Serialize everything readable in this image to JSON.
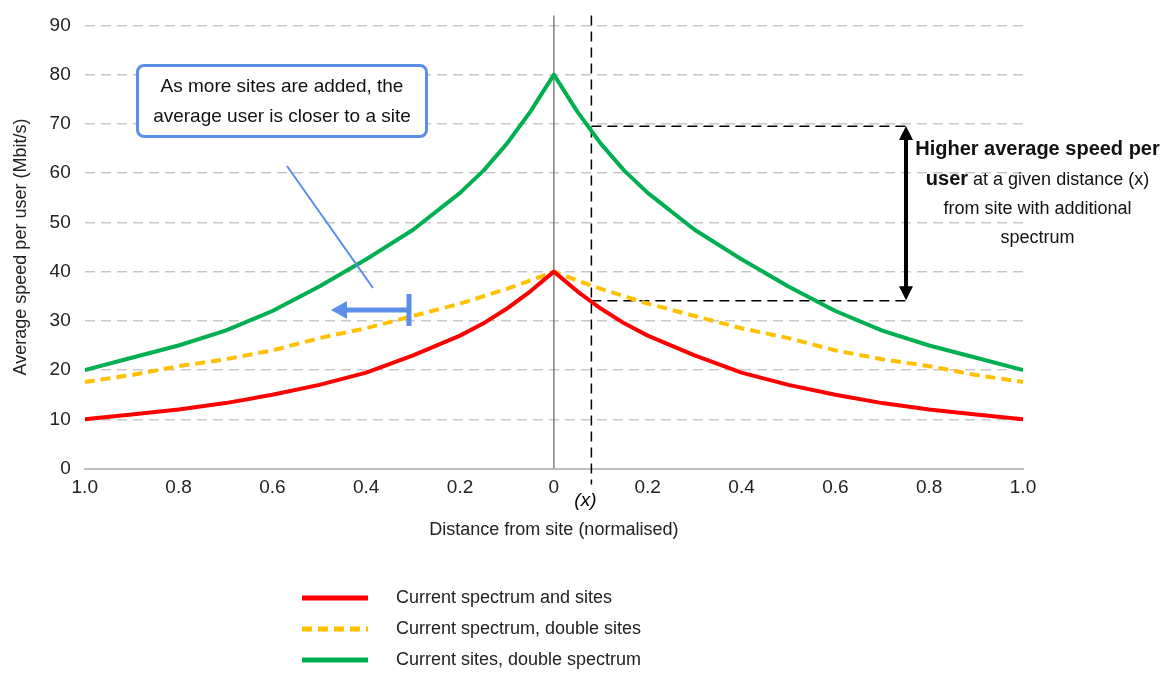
{
  "chart_data": {
    "type": "line",
    "xlabel": "Distance from site (normalised)",
    "ylabel": "Average speed per user (Mbit/s)",
    "x": [
      -1,
      -0.9,
      -0.8,
      -0.7,
      -0.6,
      -0.5,
      -0.4,
      -0.3,
      -0.2,
      -0.15,
      -0.1,
      -0.05,
      0,
      0.05,
      0.1,
      0.15,
      0.2,
      0.3,
      0.4,
      0.5,
      0.6,
      0.7,
      0.8,
      0.9,
      1
    ],
    "series": [
      {
        "name": "Current spectrum and sites",
        "color": "#ff0000",
        "line_style": "solid",
        "values": [
          10,
          11,
          12,
          13.3,
          15,
          17,
          19.5,
          23,
          27,
          29.5,
          32.5,
          36,
          40,
          36,
          32.5,
          29.5,
          27,
          23,
          19.5,
          17,
          15,
          13.3,
          12,
          11,
          10
        ]
      },
      {
        "name": "Current spectrum, double sites",
        "color": "#ffc000",
        "line_style": "dashed",
        "values": [
          17.6,
          19,
          20.8,
          22.2,
          24,
          26.5,
          28.5,
          31,
          33.5,
          35,
          36.5,
          38.2,
          40,
          38.2,
          36.5,
          35,
          33.5,
          31,
          28.5,
          26.5,
          24,
          22.2,
          20.8,
          19,
          17.6
        ]
      },
      {
        "name": "Current sites, double spectrum",
        "color": "#00b050",
        "line_style": "solid",
        "values": [
          20,
          22.5,
          25,
          28,
          32,
          37,
          42.5,
          48.5,
          56,
          60.5,
          66,
          72.5,
          80,
          72.5,
          66,
          60.5,
          56,
          48.5,
          42.5,
          37,
          32,
          28,
          25,
          22.5,
          20
        ]
      }
    ],
    "xlim": [
      -1,
      1
    ],
    "xticks": [
      {
        "value": -1,
        "label": "1.0"
      },
      {
        "value": -0.8,
        "label": "0.8"
      },
      {
        "value": -0.6,
        "label": "0.6"
      },
      {
        "value": -0.4,
        "label": "0.4"
      },
      {
        "value": -0.2,
        "label": "0.2"
      },
      0,
      0.2,
      0.4,
      0.6,
      0.8,
      {
        "value": 1,
        "label": "1.0"
      }
    ],
    "ylim": [
      0,
      90
    ],
    "yticks": [
      0,
      10,
      20,
      30,
      40,
      50,
      60,
      70,
      80,
      90
    ],
    "grid": "y",
    "legend": "bottom",
    "marker": "none",
    "ref_lines": [
      {
        "axis": "x",
        "value": 0,
        "label": null,
        "color": "#808080",
        "line_style": "solid"
      },
      {
        "axis": "x",
        "value": 0.08,
        "label": "(x)",
        "color": "#000000",
        "line_style": "dashed"
      },
      {
        "axis": "y",
        "value": 69.5,
        "label": null,
        "color": "#000000",
        "line_style": "dashed"
      },
      {
        "axis": "y",
        "value": 34.1,
        "label": null,
        "color": "#000000",
        "line_style": "dashed"
      }
    ],
    "annotations": [
      "As more sites are added, the average user is closer to a site",
      "Higher average speed per user",
      "at a given distance (x) from site with additional spectrum"
    ]
  }
}
